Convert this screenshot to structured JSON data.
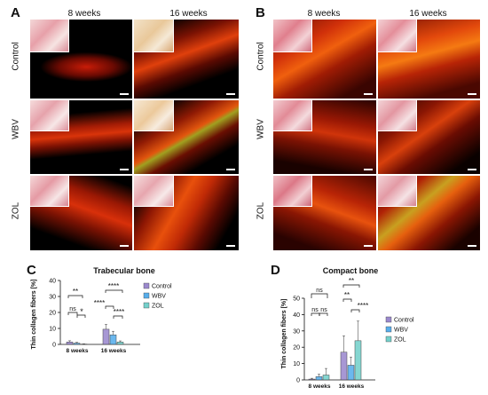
{
  "panel_labels": {
    "a": "A",
    "b": "B",
    "c": "C",
    "d": "D"
  },
  "micrographs": {
    "col_headers": [
      "8 weeks",
      "16 weeks"
    ],
    "row_labels": [
      "Control",
      "WBV",
      "ZOL"
    ]
  },
  "chart_data": [
    {
      "type": "bar",
      "title": "Trabecular bone",
      "ylabel": "Thin collagen fibers [%]",
      "categories": [
        "8 weeks",
        "16 weeks"
      ],
      "ylim": [
        0,
        40
      ],
      "yticks": [
        0,
        10,
        20,
        30,
        40
      ],
      "series": [
        {
          "name": "Control",
          "values": [
            1.5,
            9.5
          ],
          "error": [
            0.8,
            3.0
          ],
          "color": "#8a74c6"
        },
        {
          "name": "WBV",
          "values": [
            0.8,
            6.0
          ],
          "error": [
            0.5,
            2.2
          ],
          "color": "#3aa0e8"
        },
        {
          "name": "ZOL",
          "values": [
            0.2,
            1.5
          ],
          "error": [
            0.2,
            0.7
          ],
          "color": "#5cc8c2"
        }
      ],
      "significance": [
        "**",
        "ns",
        "*",
        "****",
        "****",
        "****"
      ],
      "legend": "right"
    },
    {
      "type": "bar",
      "title": "Compact bone",
      "ylabel": "Thin collagen fibers [%]",
      "categories": [
        "8 weeks",
        "16 weeks"
      ],
      "ylim": [
        0,
        50
      ],
      "yticks": [
        0,
        10,
        20,
        30,
        40,
        50
      ],
      "series": [
        {
          "name": "Control",
          "values": [
            0.5,
            17
          ],
          "error": [
            0.5,
            10
          ],
          "color": "#8a74c6"
        },
        {
          "name": "WBV",
          "values": [
            2,
            9
          ],
          "error": [
            1.5,
            5
          ],
          "color": "#3aa0e8"
        },
        {
          "name": "ZOL",
          "values": [
            3,
            24
          ],
          "error": [
            4,
            12
          ],
          "color": "#5cc8c2"
        }
      ],
      "significance": [
        "ns",
        "ns",
        "ns",
        "**",
        "**",
        "****"
      ],
      "legend": "right"
    }
  ]
}
